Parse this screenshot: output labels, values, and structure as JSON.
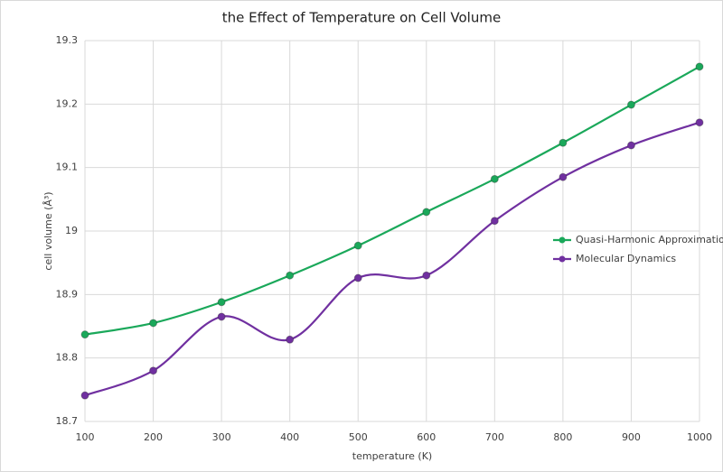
{
  "chart_data": {
    "type": "line",
    "title": "the Effect of Temperature on Cell Volume",
    "x_label": "temperature (K)",
    "y_label": "cell volume (Å³)",
    "x": [
      100,
      200,
      300,
      400,
      500,
      600,
      700,
      800,
      900,
      1000
    ],
    "series": [
      {
        "name": "Quasi-Harmonic Approximation",
        "color": "#1aa85a",
        "values": [
          18.837,
          18.855,
          18.888,
          18.93,
          18.977,
          19.03,
          19.082,
          19.139,
          19.199,
          19.259
        ]
      },
      {
        "name": "Molecular Dynamics",
        "color": "#7030a0",
        "values": [
          18.741,
          18.78,
          18.865,
          18.829,
          18.926,
          18.93,
          19.016,
          19.085,
          19.135,
          19.171
        ]
      }
    ],
    "xlim": [
      100,
      1000
    ],
    "xticks": [
      100,
      200,
      300,
      400,
      500,
      600,
      700,
      800,
      900,
      1000
    ],
    "ylim": [
      18.7,
      19.3
    ],
    "yticks": [
      18.7,
      18.8,
      18.9,
      19,
      19.1,
      19.2,
      19.3
    ],
    "grid": true,
    "smooth": true,
    "legend_position": "right"
  }
}
